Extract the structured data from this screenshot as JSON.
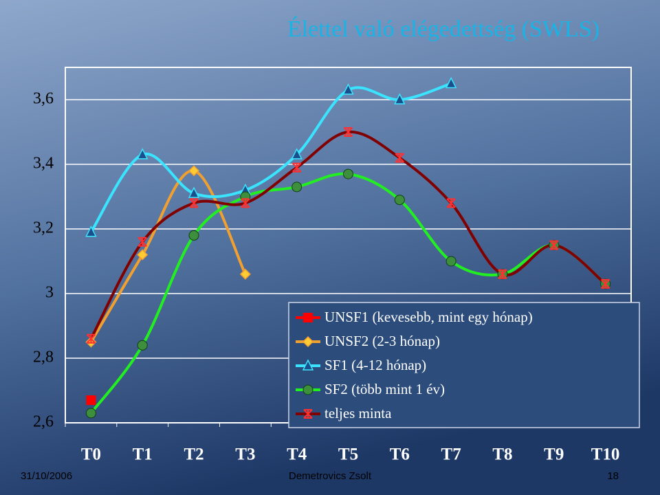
{
  "chart_data": {
    "type": "line",
    "title": "Élettel való elégedettség (SWLS)",
    "categories": [
      "T0",
      "T1",
      "T2",
      "T3",
      "T4",
      "T5",
      "T6",
      "T7",
      "T8",
      "T9",
      "T10"
    ],
    "ylim": [
      2.6,
      3.7
    ],
    "yticks": [
      {
        "value": 2.6,
        "label": "2,6"
      },
      {
        "value": 2.8,
        "label": "2,8"
      },
      3,
      {
        "value": 3.2,
        "label": "3,2"
      },
      {
        "value": 3.4,
        "label": "3,4"
      },
      {
        "value": 3.6,
        "label": "3,6"
      }
    ],
    "grid": true,
    "smooth": true,
    "series": [
      {
        "name": "UNSF1 (kevesebb, mint egy hónap)",
        "color": "#ff0000",
        "marker": "square",
        "values": [
          2.67,
          null,
          null,
          null,
          null,
          null,
          null,
          null,
          null,
          null,
          null
        ]
      },
      {
        "name": "UNSF2 (2-3 hónap)",
        "color": "#f0a030",
        "marker": "diamond",
        "values": [
          2.85,
          3.12,
          3.38,
          3.06,
          null,
          null,
          null,
          null,
          null,
          null,
          null
        ]
      },
      {
        "name": "SF1 (4-12 hónap)",
        "color": "#3ae4ff",
        "marker": "triangle",
        "values": [
          3.19,
          3.43,
          3.31,
          3.32,
          3.43,
          3.63,
          3.6,
          3.65,
          null,
          null,
          null
        ]
      },
      {
        "name": "SF2 (több mint 1 év)",
        "color": "#22ee22",
        "marker": "circle",
        "values": [
          2.63,
          2.84,
          3.18,
          3.3,
          3.33,
          3.37,
          3.29,
          3.1,
          3.06,
          3.15,
          3.03
        ]
      },
      {
        "name": "teljes minta",
        "color": "#800000",
        "marker": "star",
        "values": [
          2.86,
          3.16,
          3.28,
          3.28,
          3.39,
          3.5,
          3.42,
          3.28,
          3.06,
          3.15,
          3.03
        ]
      }
    ]
  },
  "footer": {
    "date": "31/10/2006",
    "author": "Demetrovics Zsolt",
    "page": "18"
  }
}
